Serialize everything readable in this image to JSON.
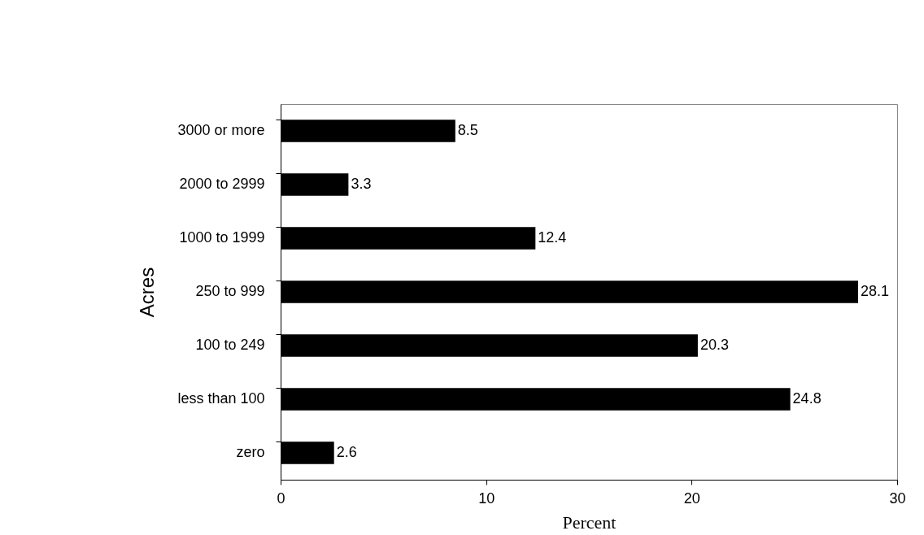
{
  "chart_data": {
    "type": "bar",
    "orientation": "horizontal",
    "xlabel": "Percent",
    "ylabel": "Acres",
    "categories": [
      "3000 or more",
      "2000 to 2999",
      "1000 to 1999",
      "250 to 999",
      "100 to 249",
      "less than 100",
      "zero"
    ],
    "values": [
      8.5,
      3.3,
      12.4,
      28.1,
      20.3,
      24.8,
      2.6
    ],
    "color": "#000000",
    "xlim": [
      0,
      30
    ],
    "xticks": [
      0,
      10,
      20,
      30
    ],
    "data_labels": true
  }
}
